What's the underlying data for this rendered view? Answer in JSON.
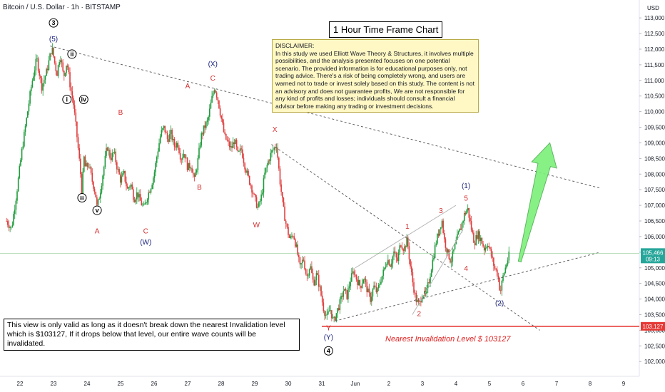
{
  "header": {
    "symbol_title": "Bitcoin / U.S. Dollar · 1h · BITSTAMP",
    "timeframe_box": "1 Hour Time Frame Chart"
  },
  "disclaimer": {
    "heading": "DISCLAIMER:",
    "body": "In this study we used Elliott Wave Theory & Structures, it involves multiple possibilities, and the analysis presented focuses on one potential scenario. The provided information is for educational purposes only, not trading advice. There's a risk of being completely wrong, and users are warned not to trade or invest solely based on this study. The content is not an advisory and does not guarantee profits, We are not responsible for any kind of profits and losses; individuals should consult a financial advisor before making any trading or investment decisions."
  },
  "validity_note": "This view is only valid as long as it doesn't break down the nearest Invalidation level which is $103127, If it drops below that level, our entire wave counts will be invalidated.",
  "invalidation_label": "Nearest Invalidation Level  $ 103127",
  "colors": {
    "up": "#26a69a",
    "up_fill": "#1e9b3a",
    "down": "#e03c3c",
    "wave_red": "#d32f2f",
    "wave_blue": "#1a237e",
    "wave_black": "#000000",
    "invalidation": "#e53935",
    "last_price": "#26a69a",
    "arrow": "#7cf07a"
  },
  "chart_data": {
    "type": "candlestick",
    "symbol": "Bitcoin / U.S. Dollar",
    "interval": "1h",
    "exchange": "BITSTAMP",
    "currency": "USD",
    "x_ticks": [
      "22",
      "23",
      "24",
      "25",
      "26",
      "27",
      "28",
      "29",
      "30",
      "31",
      "Jun",
      "2",
      "3",
      "4",
      "5",
      "6",
      "7",
      "8",
      "9"
    ],
    "y_ticks": [
      102000,
      102500,
      103000,
      103500,
      104000,
      104500,
      105000,
      105500,
      106000,
      106500,
      107000,
      107500,
      108000,
      108500,
      109000,
      109500,
      110000,
      110500,
      111000,
      111500,
      112000,
      112500,
      113000
    ],
    "y_tick_labels": [
      "102,000",
      "102,500",
      "103,000",
      "103,500",
      "104,000",
      "104,500",
      "105,000",
      "105,500",
      "106,000",
      "106,500",
      "107,000",
      "107,500",
      "108,000",
      "108,500",
      "109,000",
      "109,500",
      "110,000",
      "110,500",
      "111,000",
      "111,500",
      "112,000",
      "112,500",
      "113,000"
    ],
    "ylim": [
      101800,
      113300
    ],
    "xlim": [
      21.6,
      39.3
    ],
    "last_price": 105466,
    "last_price_label": "105,466",
    "countdown_label": "09:13",
    "invalidation_level": 103127,
    "invalidation_label": "103,127",
    "price_path": [
      [
        21.6,
        106500
      ],
      [
        21.75,
        106250
      ],
      [
        21.9,
        107400
      ],
      [
        22.05,
        108700
      ],
      [
        22.2,
        109800
      ],
      [
        22.35,
        110900
      ],
      [
        22.5,
        111700
      ],
      [
        22.65,
        110800
      ],
      [
        22.8,
        111300
      ],
      [
        22.95,
        112050
      ],
      [
        23.1,
        111200
      ],
      [
        23.2,
        111850
      ],
      [
        23.3,
        111100
      ],
      [
        23.4,
        111600
      ],
      [
        23.5,
        110800
      ],
      [
        23.6,
        110200
      ],
      [
        23.7,
        109200
      ],
      [
        23.8,
        108100
      ],
      [
        23.85,
        107300
      ],
      [
        23.9,
        108600
      ],
      [
        23.95,
        108200
      ],
      [
        24.05,
        108300
      ],
      [
        24.15,
        107800
      ],
      [
        24.25,
        107400
      ],
      [
        24.3,
        106900
      ],
      [
        24.4,
        107500
      ],
      [
        24.5,
        108200
      ],
      [
        24.6,
        108900
      ],
      [
        24.7,
        108500
      ],
      [
        24.8,
        108700
      ],
      [
        24.9,
        108200
      ],
      [
        25.0,
        107800
      ],
      [
        25.1,
        108000
      ],
      [
        25.2,
        107500
      ],
      [
        25.3,
        107700
      ],
      [
        25.4,
        107200
      ],
      [
        25.5,
        107400
      ],
      [
        25.6,
        107100
      ],
      [
        25.7,
        106900
      ],
      [
        25.8,
        107300
      ],
      [
        25.9,
        107600
      ],
      [
        26.0,
        108000
      ],
      [
        26.1,
        108700
      ],
      [
        26.2,
        109300
      ],
      [
        26.3,
        109500
      ],
      [
        26.4,
        109100
      ],
      [
        26.5,
        109300
      ],
      [
        26.6,
        108900
      ],
      [
        26.7,
        109000
      ],
      [
        26.8,
        108500
      ],
      [
        26.9,
        108700
      ],
      [
        27.0,
        108200
      ],
      [
        27.1,
        108300
      ],
      [
        27.2,
        107800
      ],
      [
        27.3,
        108400
      ],
      [
        27.4,
        109200
      ],
      [
        27.5,
        109500
      ],
      [
        27.6,
        109700
      ],
      [
        27.7,
        110300
      ],
      [
        27.8,
        110800
      ],
      [
        27.9,
        110400
      ],
      [
        28.0,
        109800
      ],
      [
        28.1,
        109200
      ],
      [
        28.2,
        109000
      ],
      [
        28.3,
        108800
      ],
      [
        28.4,
        109100
      ],
      [
        28.5,
        108600
      ],
      [
        28.6,
        108800
      ],
      [
        28.7,
        108300
      ],
      [
        28.8,
        107900
      ],
      [
        28.9,
        107600
      ],
      [
        29.0,
        107200
      ],
      [
        29.1,
        106900
      ],
      [
        29.2,
        107300
      ],
      [
        29.3,
        108000
      ],
      [
        29.4,
        108400
      ],
      [
        29.5,
        108700
      ],
      [
        29.65,
        108950
      ],
      [
        29.75,
        107800
      ],
      [
        29.85,
        106900
      ],
      [
        29.95,
        106300
      ],
      [
        30.05,
        105900
      ],
      [
        30.15,
        106100
      ],
      [
        30.25,
        105600
      ],
      [
        30.35,
        105000
      ],
      [
        30.45,
        105300
      ],
      [
        30.55,
        104700
      ],
      [
        30.65,
        105100
      ],
      [
        30.75,
        104500
      ],
      [
        30.85,
        104800
      ],
      [
        30.95,
        104300
      ],
      [
        31.05,
        103700
      ],
      [
        31.15,
        103400
      ],
      [
        31.25,
        103700
      ],
      [
        31.35,
        103250
      ],
      [
        31.45,
        103600
      ],
      [
        31.55,
        103900
      ],
      [
        31.65,
        104300
      ],
      [
        31.75,
        104100
      ],
      [
        31.85,
        104600
      ],
      [
        31.95,
        104900
      ],
      [
        32.05,
        104600
      ],
      [
        32.15,
        104400
      ],
      [
        32.25,
        104700
      ],
      [
        32.35,
        104300
      ],
      [
        32.45,
        104000
      ],
      [
        32.55,
        104400
      ],
      [
        32.65,
        104200
      ],
      [
        32.75,
        104600
      ],
      [
        32.85,
        104900
      ],
      [
        32.95,
        105300
      ],
      [
        33.05,
        105100
      ],
      [
        33.15,
        105500
      ],
      [
        33.25,
        105200
      ],
      [
        33.35,
        105800
      ],
      [
        33.45,
        105600
      ],
      [
        33.55,
        105900
      ],
      [
        33.62,
        105200
      ],
      [
        33.7,
        104600
      ],
      [
        33.8,
        104000
      ],
      [
        33.9,
        103800
      ],
      [
        34.0,
        104200
      ],
      [
        34.1,
        104100
      ],
      [
        34.2,
        104600
      ],
      [
        34.3,
        105200
      ],
      [
        34.4,
        105800
      ],
      [
        34.5,
        106200
      ],
      [
        34.58,
        106550
      ],
      [
        34.65,
        105900
      ],
      [
        34.75,
        105500
      ],
      [
        34.85,
        105200
      ],
      [
        34.95,
        105600
      ],
      [
        35.05,
        106000
      ],
      [
        35.15,
        106300
      ],
      [
        35.25,
        106700
      ],
      [
        35.35,
        106900
      ],
      [
        35.45,
        106300
      ],
      [
        35.55,
        105800
      ],
      [
        35.65,
        106100
      ],
      [
        35.75,
        105900
      ],
      [
        35.85,
        105600
      ],
      [
        35.95,
        105800
      ],
      [
        36.05,
        105400
      ],
      [
        36.15,
        105000
      ],
      [
        36.25,
        104800
      ],
      [
        36.32,
        104200
      ],
      [
        36.4,
        104700
      ],
      [
        36.5,
        105100
      ],
      [
        36.6,
        105466
      ]
    ],
    "trendlines": [
      {
        "name": "upper-trendline",
        "style": "dashed",
        "from": [
          22.9,
          112100
        ],
        "to": [
          39.3,
          107550
        ]
      },
      {
        "name": "lower-trendline",
        "style": "dashed",
        "from": [
          31.4,
          103300
        ],
        "to": [
          39.3,
          105500
        ]
      },
      {
        "name": "x-to-target-line",
        "style": "dashed",
        "from": [
          29.5,
          108950
        ],
        "to": [
          37.5,
          103000
        ]
      },
      {
        "name": "channel-upper-line",
        "style": "solid",
        "from": [
          32.0,
          105000
        ],
        "to": [
          35.0,
          107000
        ]
      },
      {
        "name": "channel-lower-line",
        "style": "solid",
        "from": [
          33.7,
          103500
        ],
        "to": [
          35.2,
          106200
        ]
      }
    ],
    "invalidation_line": {
      "from": [
        31.0,
        103127
      ],
      "to": [
        39.3,
        103127
      ]
    },
    "projection_arrow": {
      "from": [
        36.9,
        105200
      ],
      "to": [
        37.8,
        109000
      ]
    },
    "wave_labels": [
      {
        "text": "3",
        "x": 23.0,
        "y": 112750,
        "color": "black",
        "circled": true
      },
      {
        "text": "(5)",
        "x": 23.0,
        "y": 112250,
        "color": "blue"
      },
      {
        "text": "ii",
        "x": 23.55,
        "y": 111750,
        "color": "black",
        "circled": true
      },
      {
        "text": "i",
        "x": 23.4,
        "y": 110300,
        "color": "black",
        "circled": true
      },
      {
        "text": "iv",
        "x": 23.9,
        "y": 110300,
        "color": "black",
        "circled": true
      },
      {
        "text": "iii",
        "x": 23.85,
        "y": 107150,
        "color": "black",
        "circled": true
      },
      {
        "text": "v",
        "x": 24.3,
        "y": 106750,
        "color": "black",
        "circled": true
      },
      {
        "text": "A",
        "x": 24.3,
        "y": 106100,
        "color": "red"
      },
      {
        "text": "B",
        "x": 25.0,
        "y": 109900,
        "color": "red"
      },
      {
        "text": "C",
        "x": 25.75,
        "y": 106100,
        "color": "red"
      },
      {
        "text": "(W)",
        "x": 25.75,
        "y": 105750,
        "color": "blue"
      },
      {
        "text": "A",
        "x": 27.0,
        "y": 110750,
        "color": "red"
      },
      {
        "text": "B",
        "x": 27.35,
        "y": 107500,
        "color": "red"
      },
      {
        "text": "(X)",
        "x": 27.75,
        "y": 111450,
        "color": "blue"
      },
      {
        "text": "C",
        "x": 27.75,
        "y": 111000,
        "color": "red"
      },
      {
        "text": "W",
        "x": 29.05,
        "y": 106300,
        "color": "red"
      },
      {
        "text": "X",
        "x": 29.6,
        "y": 109350,
        "color": "red"
      },
      {
        "text": "Y",
        "x": 31.2,
        "y": 103000,
        "color": "red"
      },
      {
        "text": "(Y)",
        "x": 31.2,
        "y": 102700,
        "color": "blue"
      },
      {
        "text": "4",
        "x": 31.2,
        "y": 102250,
        "color": "black",
        "circled": true
      },
      {
        "text": "1",
        "x": 33.55,
        "y": 106250,
        "color": "red"
      },
      {
        "text": "2",
        "x": 33.9,
        "y": 103450,
        "color": "red"
      },
      {
        "text": "3",
        "x": 34.55,
        "y": 106750,
        "color": "red"
      },
      {
        "text": "4",
        "x": 35.3,
        "y": 104900,
        "color": "red"
      },
      {
        "text": "5",
        "x": 35.3,
        "y": 107150,
        "color": "red"
      },
      {
        "text": "(1)",
        "x": 35.3,
        "y": 107550,
        "color": "blue"
      },
      {
        "text": "(2)",
        "x": 36.3,
        "y": 103800,
        "color": "blue"
      }
    ]
  }
}
